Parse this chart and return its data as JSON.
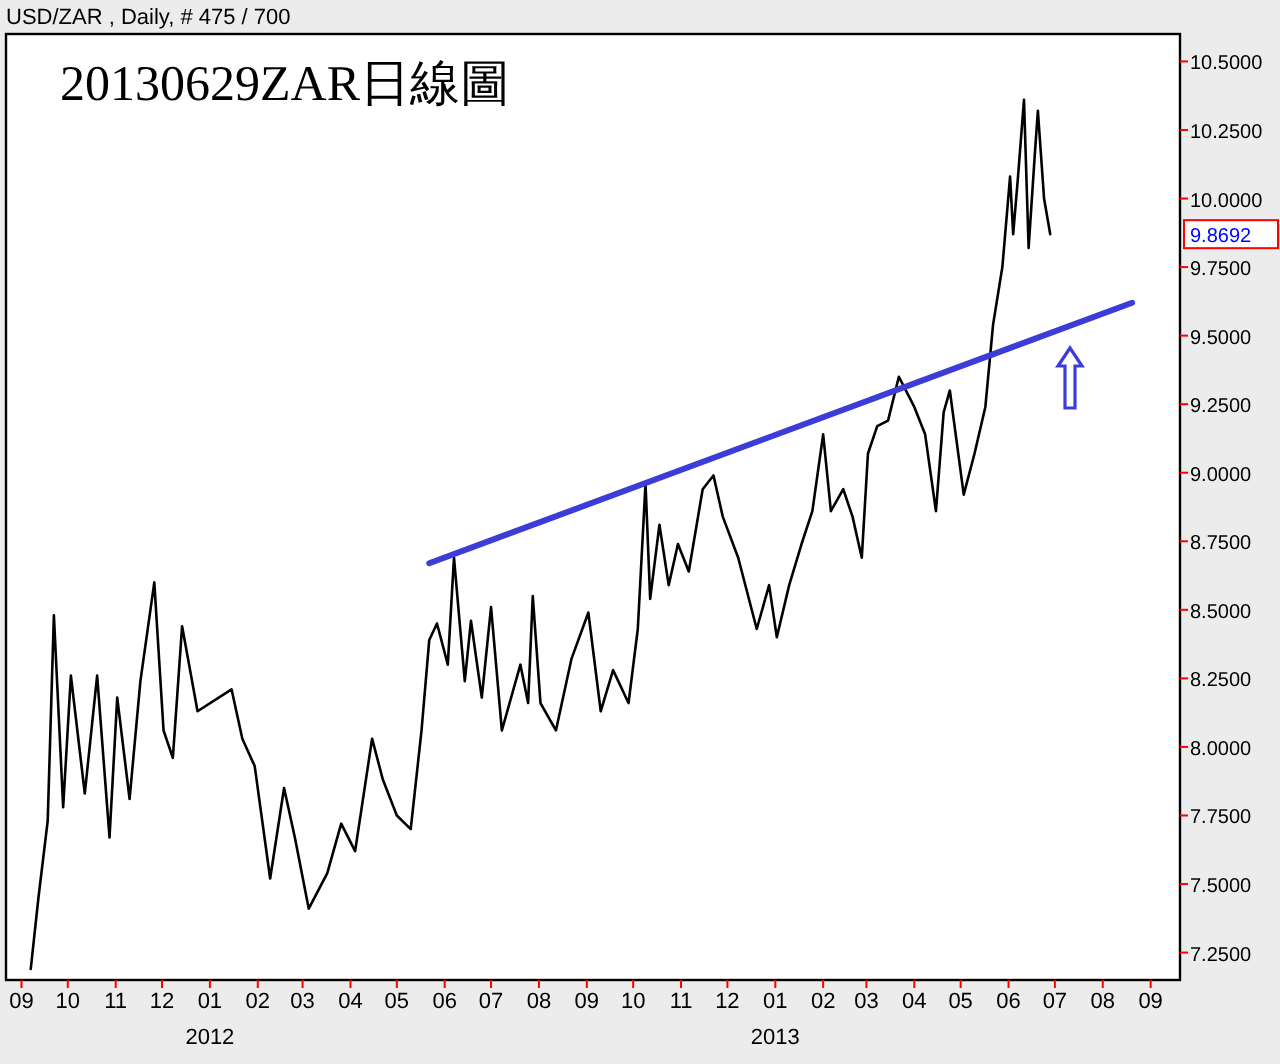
{
  "chart_data": {
    "type": "line",
    "title": "20130629ZAR日線圖",
    "subtitle": "USD/ZAR , Daily, # 475 / 700",
    "x": [
      "2011-09-07",
      "2011-09-12",
      "2011-09-18",
      "2011-09-22",
      "2011-09-28",
      "2011-10-03",
      "2011-10-12",
      "2011-10-20",
      "2011-10-28",
      "2011-11-02",
      "2011-11-10",
      "2011-11-17",
      "2011-11-26",
      "2011-12-02",
      "2011-12-08",
      "2011-12-14",
      "2011-12-24",
      "2012-01-15",
      "2012-01-22",
      "2012-01-30",
      "2012-02-09",
      "2012-02-18",
      "2012-02-25",
      "2012-03-05",
      "2012-03-17",
      "2012-03-26",
      "2012-04-04",
      "2012-04-15",
      "2012-04-22",
      "2012-05-01",
      "2012-05-10",
      "2012-05-17",
      "2012-05-22",
      "2012-05-27",
      "2012-06-03",
      "2012-06-07",
      "2012-06-14",
      "2012-06-18",
      "2012-06-25",
      "2012-07-01",
      "2012-07-08",
      "2012-07-20",
      "2012-07-25",
      "2012-07-28",
      "2012-08-02",
      "2012-08-12",
      "2012-08-22",
      "2012-09-02",
      "2012-09-10",
      "2012-09-18",
      "2012-09-28",
      "2012-10-04",
      "2012-10-09",
      "2012-10-12",
      "2012-10-18",
      "2012-10-24",
      "2012-10-30",
      "2012-11-06",
      "2012-11-15",
      "2012-11-22",
      "2012-11-28",
      "2012-12-08",
      "2012-12-20",
      "2012-12-28",
      "2013-01-02",
      "2013-01-10",
      "2013-01-18",
      "2013-01-25",
      "2013-02-01",
      "2013-02-06",
      "2013-02-14",
      "2013-02-20",
      "2013-02-26",
      "2013-03-02",
      "2013-03-08",
      "2013-03-15",
      "2013-03-22",
      "2013-04-01",
      "2013-04-08",
      "2013-04-15",
      "2013-04-20",
      "2013-04-24",
      "2013-05-03",
      "2013-05-10",
      "2013-05-17",
      "2013-05-22",
      "2013-05-28",
      "2013-06-02",
      "2013-06-04",
      "2013-06-07",
      "2013-06-11",
      "2013-06-14",
      "2013-06-18",
      "2013-06-20",
      "2013-06-24",
      "2013-06-28"
    ],
    "series": [
      {
        "color": "#000000",
        "values": [
          7.19,
          7.45,
          7.73,
          8.48,
          7.78,
          8.26,
          7.83,
          8.26,
          7.67,
          8.18,
          7.81,
          8.24,
          8.6,
          8.06,
          7.96,
          8.44,
          8.13,
          8.21,
          8.03,
          7.93,
          7.52,
          7.85,
          7.67,
          7.41,
          7.54,
          7.72,
          7.62,
          8.03,
          7.88,
          7.75,
          7.7,
          8.06,
          8.39,
          8.45,
          8.3,
          8.69,
          8.24,
          8.46,
          8.18,
          8.51,
          8.06,
          8.3,
          8.16,
          8.55,
          8.16,
          8.06,
          8.32,
          8.49,
          8.13,
          8.28,
          8.16,
          8.43,
          8.96,
          8.54,
          8.81,
          8.59,
          8.74,
          8.64,
          8.94,
          8.99,
          8.84,
          8.69,
          8.43,
          8.59,
          8.4,
          8.59,
          8.74,
          8.86,
          9.14,
          8.86,
          8.94,
          8.84,
          8.69,
          9.07,
          9.17,
          9.19,
          9.35,
          9.24,
          9.14,
          8.86,
          9.22,
          9.3,
          8.92,
          9.07,
          9.24,
          9.54,
          9.75,
          10.08,
          9.87,
          10.07,
          10.36,
          9.82,
          10.16,
          10.32,
          10.0,
          9.87
        ]
      },
      {
        "type": "line",
        "color": "#3c3cd8",
        "x": [
          "2012-05-22",
          "2013-08-20"
        ],
        "values": [
          8.67,
          9.62
        ]
      }
    ],
    "xlim": [
      "2011-08-22",
      "2013-09-20"
    ],
    "xticks": [
      {
        "value": "2011-09-01",
        "label": "09"
      },
      {
        "value": "2011-10-01",
        "label": "10"
      },
      {
        "value": "2011-11-01",
        "label": "11"
      },
      {
        "value": "2011-12-01",
        "label": "12"
      },
      {
        "value": "2012-01-01",
        "label": "01\n2012"
      },
      {
        "value": "2012-02-01",
        "label": "02"
      },
      {
        "value": "2012-03-01",
        "label": "03"
      },
      {
        "value": "2012-04-01",
        "label": "04"
      },
      {
        "value": "2012-05-01",
        "label": "05"
      },
      {
        "value": "2012-06-01",
        "label": "06"
      },
      {
        "value": "2012-07-01",
        "label": "07"
      },
      {
        "value": "2012-08-01",
        "label": "08"
      },
      {
        "value": "2012-09-01",
        "label": "09"
      },
      {
        "value": "2012-10-01",
        "label": "10"
      },
      {
        "value": "2012-11-01",
        "label": "11"
      },
      {
        "value": "2012-12-01",
        "label": "12"
      },
      {
        "value": "2013-01-01",
        "label": "01\n2013"
      },
      {
        "value": "2013-02-01",
        "label": "02"
      },
      {
        "value": "2013-03-01",
        "label": "03"
      },
      {
        "value": "2013-04-01",
        "label": "04"
      },
      {
        "value": "2013-05-01",
        "label": "05"
      },
      {
        "value": "2013-06-01",
        "label": "06"
      },
      {
        "value": "2013-07-01",
        "label": "07"
      },
      {
        "value": "2013-08-01",
        "label": "08"
      },
      {
        "value": "2013-09-01",
        "label": "09"
      }
    ],
    "ylim": [
      7.15,
      10.6
    ],
    "yticks": [
      {
        "value": 7.25,
        "label": "7.2500"
      },
      {
        "value": 7.5,
        "label": "7.5000"
      },
      {
        "value": 7.75,
        "label": "7.7500"
      },
      {
        "value": 8,
        "label": "8.0000"
      },
      {
        "value": 8.25,
        "label": "8.2500"
      },
      {
        "value": 8.5,
        "label": "8.5000"
      },
      {
        "value": 8.75,
        "label": "8.7500"
      },
      {
        "value": 9,
        "label": "9.0000"
      },
      {
        "value": 9.25,
        "label": "9.2500"
      },
      {
        "value": 9.5,
        "label": "9.5000"
      },
      {
        "value": 9.75,
        "label": "9.7500"
      },
      {
        "value": 10,
        "label": "10.0000"
      },
      {
        "value": 10.25,
        "label": "10.2500"
      },
      {
        "value": 10.5,
        "label": "10.5000"
      }
    ],
    "annotations": [
      "9.8692"
    ],
    "line_style": "solid",
    "grid": false
  }
}
